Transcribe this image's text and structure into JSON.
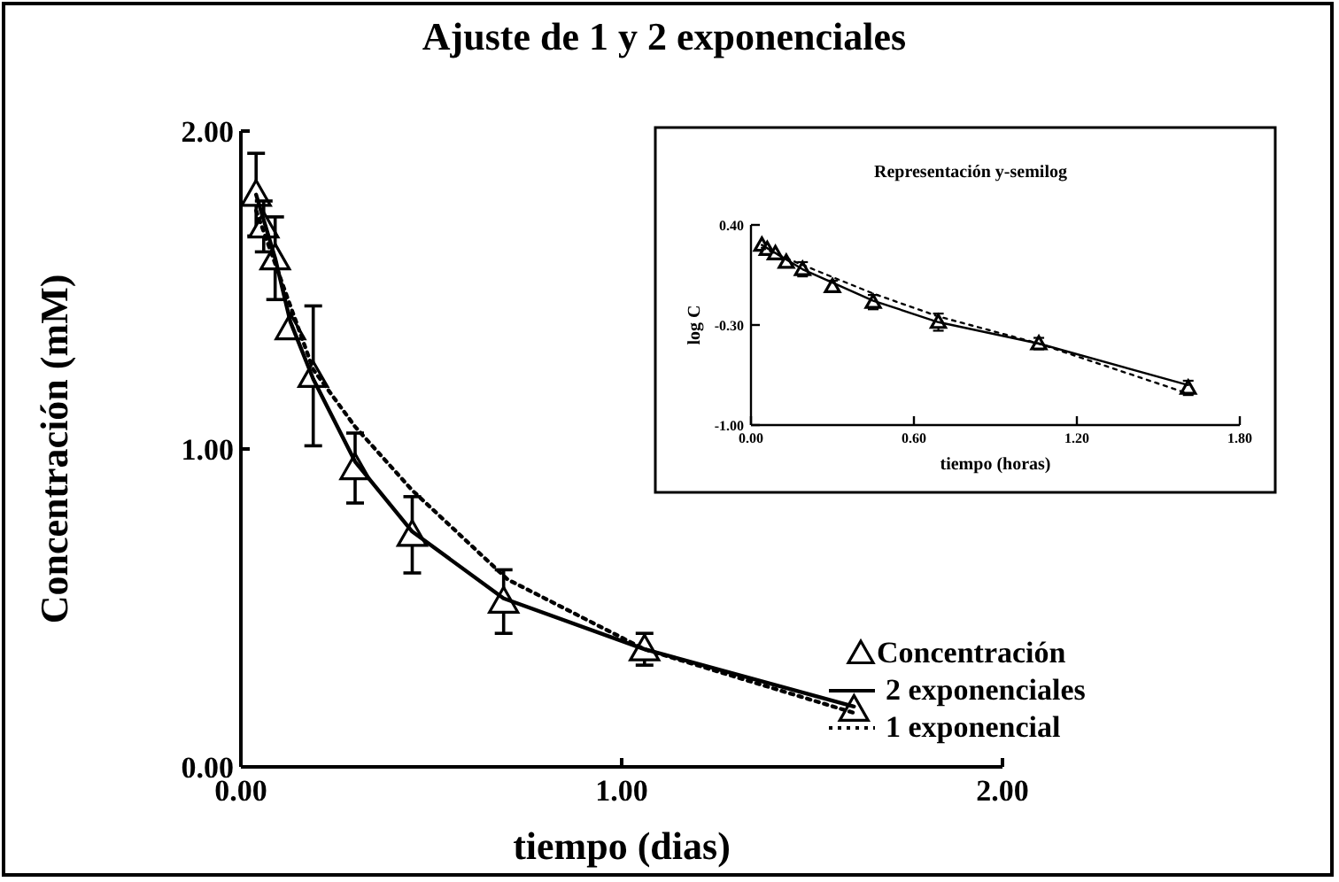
{
  "chart_data": [
    {
      "type": "scatter",
      "title": "Ajuste de 1 y 2 exponenciales",
      "xlabel": "tiempo (dias)",
      "ylabel": "Concentración (mM)",
      "xlim": [
        0,
        2
      ],
      "ylim": [
        0,
        2
      ],
      "xticks": [
        {
          "value": 0,
          "label": "0.00"
        },
        {
          "value": 1,
          "label": "1.00"
        },
        {
          "value": 2,
          "label": "2.00"
        }
      ],
      "yticks": [
        {
          "value": 0,
          "label": "0.00"
        },
        {
          "value": 1,
          "label": "1.00"
        },
        {
          "value": 2,
          "label": "2.00"
        }
      ],
      "legend": "bottom right",
      "grid": false,
      "series": [
        {
          "name": "Concentración",
          "type": "scatter",
          "marker": "triangle",
          "color": "#000000",
          "x": [
            0.04,
            0.06,
            0.09,
            0.13,
            0.19,
            0.3,
            0.45,
            0.69,
            1.06,
            1.61
          ],
          "values": [
            1.8,
            1.7,
            1.6,
            1.38,
            1.23,
            0.94,
            0.73,
            0.52,
            0.37,
            0.18
          ],
          "errors": [
            0.13,
            0.08,
            0.13,
            null,
            0.22,
            0.11,
            0.12,
            0.1,
            0.05,
            null
          ]
        },
        {
          "name": "2 exponenciales",
          "type": "line",
          "line_style": "solid",
          "marker": "none",
          "color": "#000000",
          "x": [
            0.04,
            0.09,
            0.13,
            0.19,
            0.3,
            0.45,
            0.69,
            1.06,
            1.61
          ],
          "values": [
            1.8,
            1.6,
            1.4,
            1.22,
            0.96,
            0.74,
            0.53,
            0.37,
            0.19
          ]
        },
        {
          "name": "1 exponencial",
          "type": "line",
          "line_style": "dotted",
          "marker": "none",
          "color": "#000000",
          "x": [
            0.04,
            0.1,
            0.19,
            0.3,
            0.45,
            0.7,
            1.06,
            1.61
          ],
          "values": [
            1.75,
            1.55,
            1.25,
            1.07,
            0.87,
            0.59,
            0.37,
            0.17
          ]
        }
      ]
    },
    {
      "type": "scatter",
      "title": "Representación y-semilog",
      "xlabel": "tiempo (horas)",
      "ylabel": "log C",
      "xlim": [
        0,
        1.8
      ],
      "ylim": [
        -1,
        0.4
      ],
      "xticks": [
        {
          "value": 0,
          "label": "0.00"
        },
        {
          "value": 0.6,
          "label": "0.60"
        },
        {
          "value": 1.2,
          "label": "1.20"
        },
        {
          "value": 1.8,
          "label": "1.80"
        }
      ],
      "yticks": [
        {
          "value": -1,
          "label": "-1.00"
        },
        {
          "value": -0.3,
          "label": "-0.30"
        },
        {
          "value": 0.4,
          "label": "0.40"
        }
      ],
      "grid": false,
      "series": [
        {
          "type": "scatter",
          "marker": "triangle",
          "color": "#000000",
          "x": [
            0.04,
            0.06,
            0.09,
            0.13,
            0.19,
            0.3,
            0.45,
            0.69,
            1.06,
            1.61
          ],
          "values": [
            0.26,
            0.23,
            0.2,
            0.14,
            0.09,
            -0.03,
            -0.14,
            -0.28,
            -0.43,
            -0.74
          ],
          "errors": [
            null,
            null,
            null,
            null,
            0.05,
            0.04,
            0.05,
            0.06,
            0.04,
            0.05
          ]
        },
        {
          "type": "line",
          "line_style": "solid",
          "marker": "none",
          "color": "#000000",
          "x": [
            0.04,
            0.19,
            0.45,
            0.69,
            1.06,
            1.61
          ],
          "values": [
            0.26,
            0.09,
            -0.13,
            -0.28,
            -0.43,
            -0.72
          ]
        },
        {
          "type": "line",
          "line_style": "dotted",
          "marker": "none",
          "color": "#000000",
          "x": [
            0.04,
            0.19,
            0.45,
            0.69,
            1.06,
            1.61
          ],
          "values": [
            0.24,
            0.12,
            -0.08,
            -0.24,
            -0.43,
            -0.78
          ]
        }
      ]
    }
  ]
}
